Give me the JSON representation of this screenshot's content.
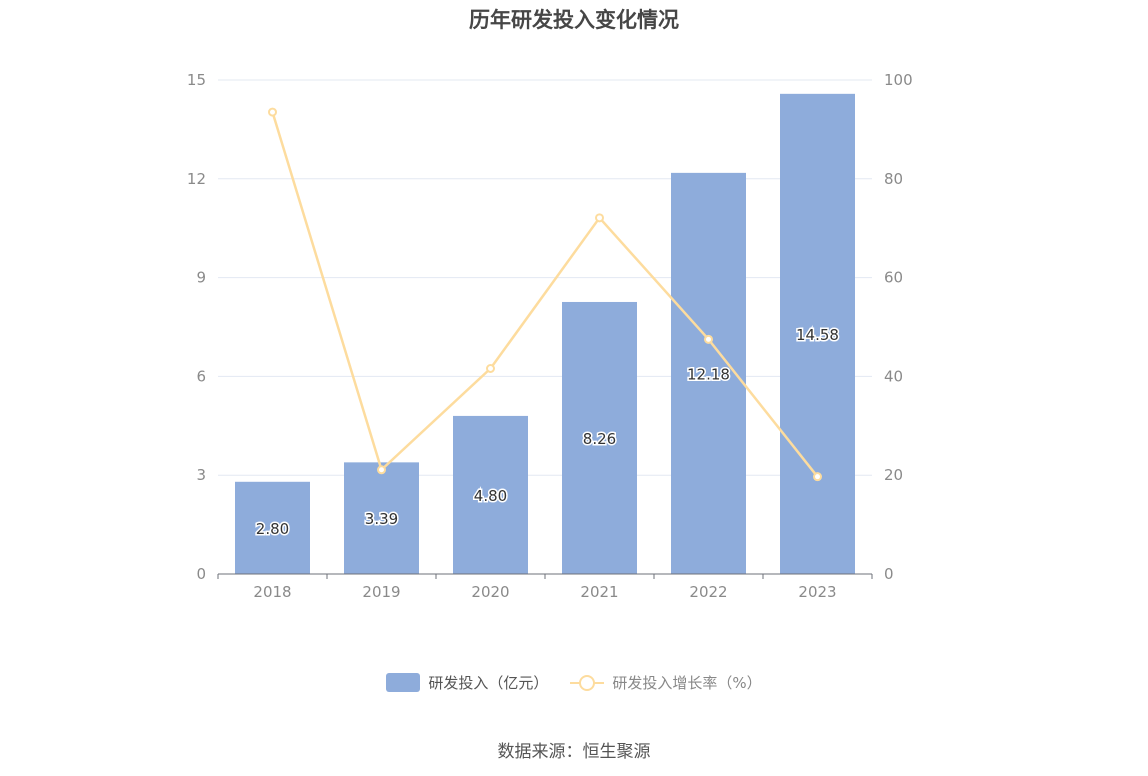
{
  "source_text": "数据来源：恒生聚源",
  "chart_data": {
    "type": "bar",
    "title": "历年研发投入变化情况",
    "categories": [
      "2018",
      "2019",
      "2020",
      "2021",
      "2022",
      "2023"
    ],
    "series": [
      {
        "name": "研发投入（亿元）",
        "type": "bar",
        "axis": "left",
        "color": "#8eacdb",
        "values": [
          2.8,
          3.39,
          4.8,
          8.26,
          12.18,
          14.58
        ],
        "labels": [
          "2.80",
          "3.39",
          "4.80",
          "8.26",
          "12.18",
          "14.58"
        ]
      },
      {
        "name": "研发投入增长率（%）",
        "type": "line",
        "axis": "right",
        "color": "#fddc9e",
        "values": [
          93.5,
          21.1,
          41.6,
          72.1,
          47.5,
          19.7
        ]
      }
    ],
    "y_left": {
      "ylim": [
        0,
        15
      ],
      "ticks": [
        "0",
        "3",
        "6",
        "9",
        "12",
        "15"
      ]
    },
    "y_right": {
      "ylim": [
        0,
        100
      ],
      "ticks": [
        "0",
        "20",
        "40",
        "60",
        "80",
        "100"
      ]
    },
    "grid": true,
    "legend_position": "bottom-center"
  }
}
